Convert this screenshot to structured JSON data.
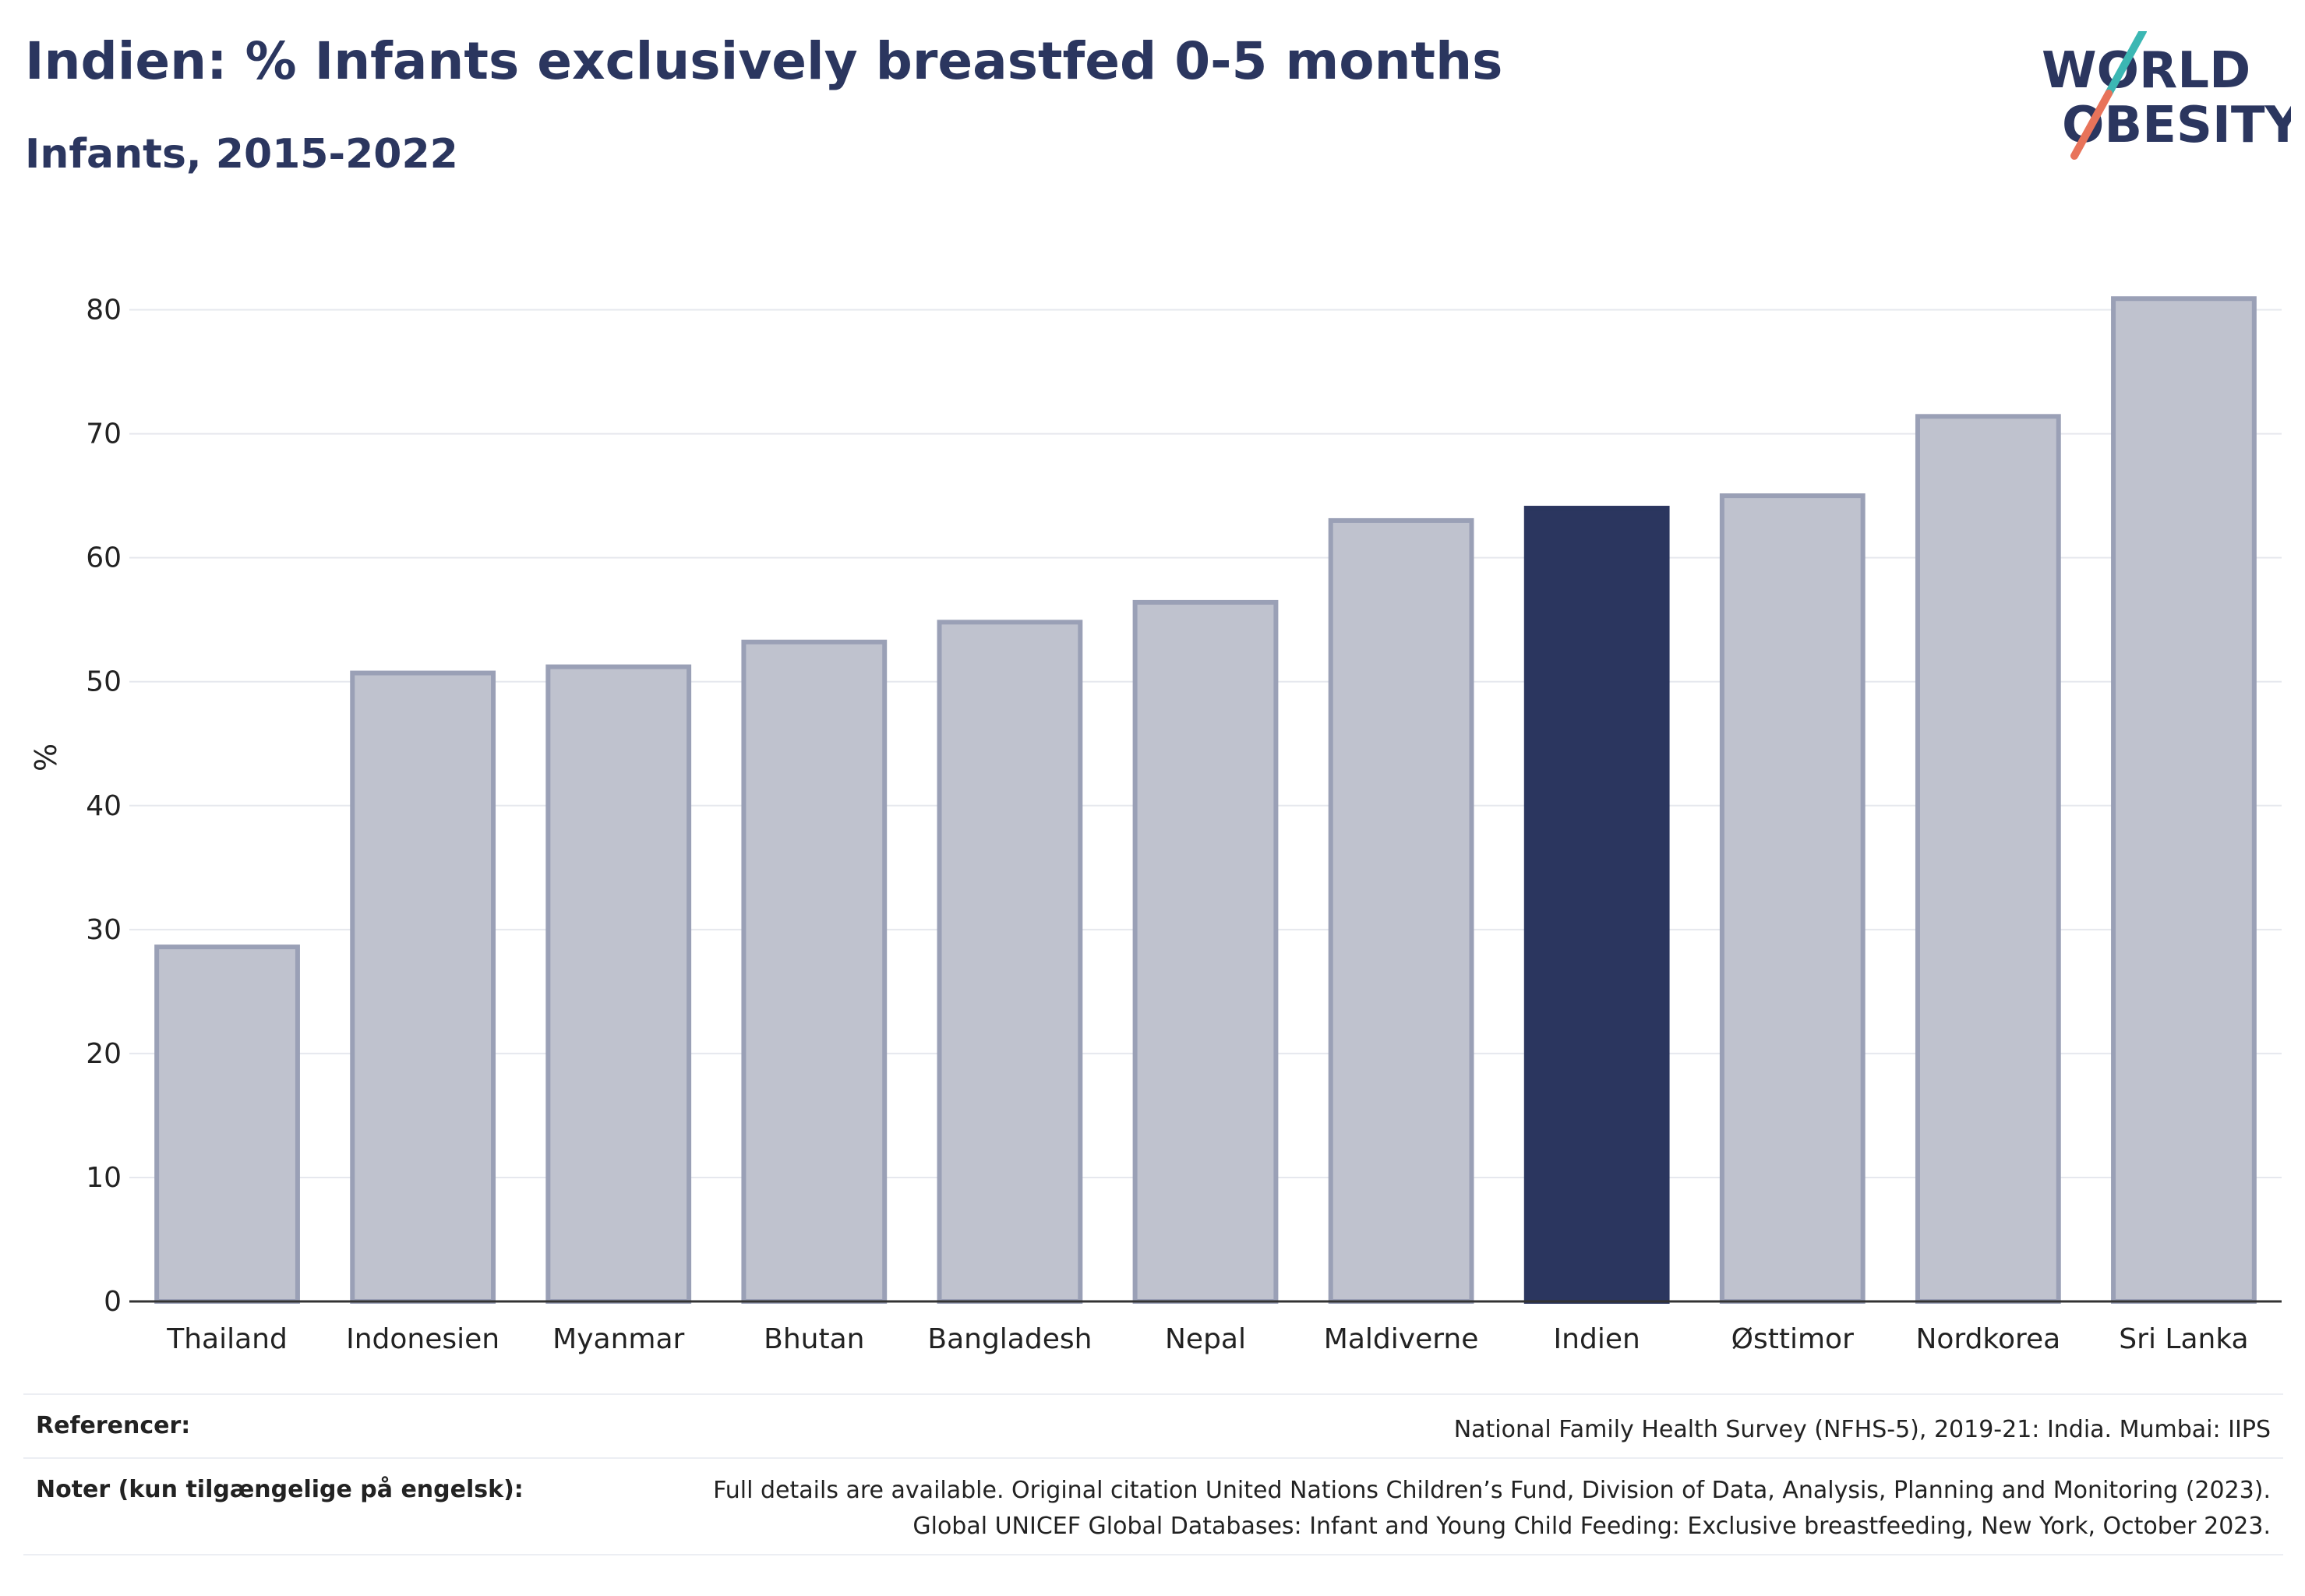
{
  "header": {
    "title": "Indien: % Infants exclusively breastfed 0-5 months",
    "subtitle": "Infants, 2015-2022"
  },
  "logo": {
    "line1": "WORLD",
    "line2": "OBESITY",
    "colors": {
      "text": "#2b365f",
      "slash_top": "#3bb7b3",
      "slash_bottom": "#e8735a"
    }
  },
  "chart_data": {
    "type": "bar",
    "categories": [
      "Thailand",
      "Indonesien",
      "Myanmar",
      "Bhutan",
      "Bangladesh",
      "Nepal",
      "Maldiverne",
      "Indien",
      "Østtimor",
      "Nordkorea",
      "Sri Lanka"
    ],
    "values": [
      28.6,
      50.7,
      51.2,
      53.2,
      54.8,
      56.4,
      63.0,
      64.0,
      65.0,
      71.4,
      80.9
    ],
    "highlight": "Indien",
    "ylabel": "%",
    "xlabel": "",
    "ylim": [
      0,
      85
    ],
    "yticks": [
      0,
      10,
      20,
      30,
      40,
      50,
      60,
      70,
      80
    ],
    "grid": true,
    "colors": {
      "bar": "#bfc2ce",
      "bar_edge": "#9aa0b6",
      "highlight": "#2b365f",
      "grid": "#e6e8ee",
      "axis": "#333333"
    }
  },
  "footer": {
    "references_label": "Referencer:",
    "references_text": "National Family Health Survey (NFHS-5), 2019-21: India. Mumbai: IIPS",
    "notes_label": "Noter (kun tilgængelige på engelsk):",
    "notes_line1": "Full details are available. Original citation United Nations Children’s Fund, Division of Data, Analysis, Planning and Monitoring (2023).",
    "notes_line2": "Global UNICEF Global Databases: Infant and Young Child Feeding: Exclusive breastfeeding, New York, October 2023."
  }
}
